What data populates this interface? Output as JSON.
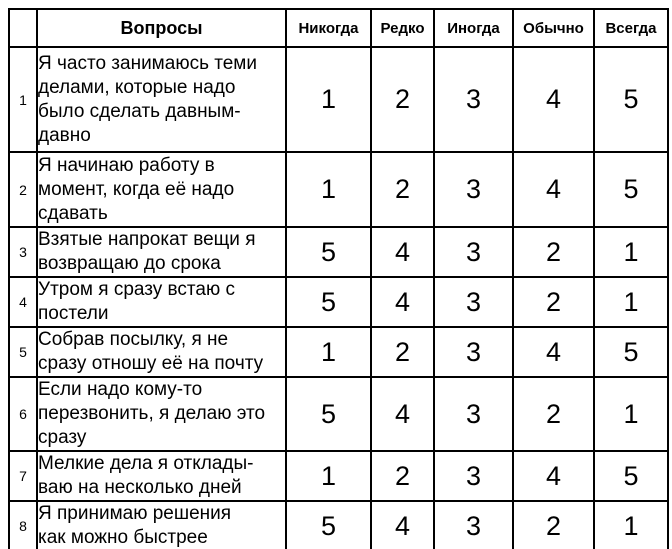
{
  "page": {
    "background_color": "#ffffff",
    "border_color": "#000000",
    "text_color": "#000000"
  },
  "table": {
    "header": {
      "number_label": "",
      "questions_label": "Вопросы",
      "options": [
        "Никогда",
        "Редко",
        "Иногда",
        "Обычно",
        "Всегда"
      ]
    },
    "rows": [
      {
        "num": "1",
        "question": "Я часто занимаюсь теми\nделами, которые надо\nбыло сделать давным-\nдавно",
        "values": [
          "1",
          "2",
          "3",
          "4",
          "5"
        ]
      },
      {
        "num": "2",
        "question": "Я начинаю работу в\nмомент, когда её надо\nсдавать",
        "values": [
          "1",
          "2",
          "3",
          "4",
          "5"
        ]
      },
      {
        "num": "3",
        "question": "Взятые напрокат вещи я\nвозвращаю до срока",
        "values": [
          "5",
          "4",
          "3",
          "2",
          "1"
        ]
      },
      {
        "num": "4",
        "question": "Утром я сразу встаю с\nпостели",
        "values": [
          "5",
          "4",
          "3",
          "2",
          "1"
        ]
      },
      {
        "num": "5",
        "question": "Собрав посылку, я не\nсразу отношу её на почту",
        "values": [
          "1",
          "2",
          "3",
          "4",
          "5"
        ]
      },
      {
        "num": "6",
        "question": "Если надо кому-то\nперезвонить, я делаю это\nсразу",
        "values": [
          "5",
          "4",
          "3",
          "2",
          "1"
        ]
      },
      {
        "num": "7",
        "question": "Мелкие дела я отклады-\nваю на несколько дней",
        "values": [
          "1",
          "2",
          "3",
          "4",
          "5"
        ]
      },
      {
        "num": "8",
        "question": "Я принимаю решения\nкак можно быстрее",
        "values": [
          "5",
          "4",
          "3",
          "2",
          "1"
        ]
      }
    ]
  }
}
